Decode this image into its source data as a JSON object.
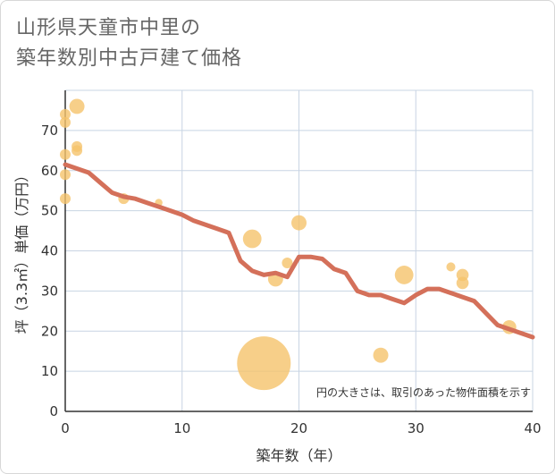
{
  "title_line1": "山形県天童市中里の",
  "title_line2": "築年数別中古戸建て価格",
  "chart_data": {
    "type": "scatter",
    "xlabel": "築年数（年）",
    "ylabel": "坪（3.3㎡）単価（万円）",
    "xlim": [
      0,
      40
    ],
    "ylim": [
      0,
      80
    ],
    "x_ticks": [
      "0",
      "10",
      "20",
      "30",
      "40"
    ],
    "y_ticks": [
      "0",
      "10",
      "20",
      "30",
      "40",
      "50",
      "60",
      "70"
    ],
    "grid": true,
    "note": "円の大きさは、取引のあった物件面積を示す",
    "colors": {
      "bubble": "#f5c36b",
      "trend": "#d4705a",
      "grid": "#c8d4e3"
    },
    "bubbles": [
      {
        "x": 0,
        "y": 74,
        "size": 1
      },
      {
        "x": 0,
        "y": 72,
        "size": 1
      },
      {
        "x": 0,
        "y": 64,
        "size": 1
      },
      {
        "x": 0,
        "y": 59,
        "size": 1
      },
      {
        "x": 0,
        "y": 53,
        "size": 1
      },
      {
        "x": 1,
        "y": 76,
        "size": 2
      },
      {
        "x": 1,
        "y": 66,
        "size": 1
      },
      {
        "x": 1,
        "y": 65,
        "size": 1
      },
      {
        "x": 5,
        "y": 53,
        "size": 1
      },
      {
        "x": 8,
        "y": 52,
        "size": 0.5
      },
      {
        "x": 16,
        "y": 43,
        "size": 3
      },
      {
        "x": 17,
        "y": 12,
        "size": 25
      },
      {
        "x": 18,
        "y": 33,
        "size": 2
      },
      {
        "x": 19,
        "y": 37,
        "size": 1
      },
      {
        "x": 20,
        "y": 47,
        "size": 2
      },
      {
        "x": 27,
        "y": 14,
        "size": 2
      },
      {
        "x": 29,
        "y": 34,
        "size": 3
      },
      {
        "x": 33,
        "y": 36,
        "size": 0.7
      },
      {
        "x": 34,
        "y": 34,
        "size": 1.3
      },
      {
        "x": 34,
        "y": 32,
        "size": 1.3
      },
      {
        "x": 38,
        "y": 21,
        "size": 1.7
      }
    ],
    "trend": {
      "x": [
        0,
        1,
        2,
        3,
        4,
        5,
        6,
        7,
        8,
        9,
        10,
        11,
        12,
        13,
        14,
        15,
        16,
        17,
        18,
        19,
        20,
        21,
        22,
        23,
        24,
        25,
        26,
        27,
        28,
        29,
        30,
        31,
        32,
        33,
        34,
        35,
        36,
        37,
        38,
        39,
        40
      ],
      "y": [
        61.5,
        60.5,
        59.5,
        57.0,
        54.5,
        53.5,
        53.0,
        52.0,
        51.0,
        50.0,
        49.0,
        47.5,
        46.5,
        45.5,
        44.5,
        37.5,
        35.0,
        34.0,
        34.5,
        33.5,
        38.5,
        38.5,
        38.0,
        35.5,
        34.5,
        30.0,
        29.0,
        29.0,
        28.0,
        27.0,
        29.0,
        30.5,
        30.5,
        29.5,
        28.5,
        27.5,
        24.5,
        21.5,
        20.5,
        19.5,
        18.5
      ]
    }
  }
}
